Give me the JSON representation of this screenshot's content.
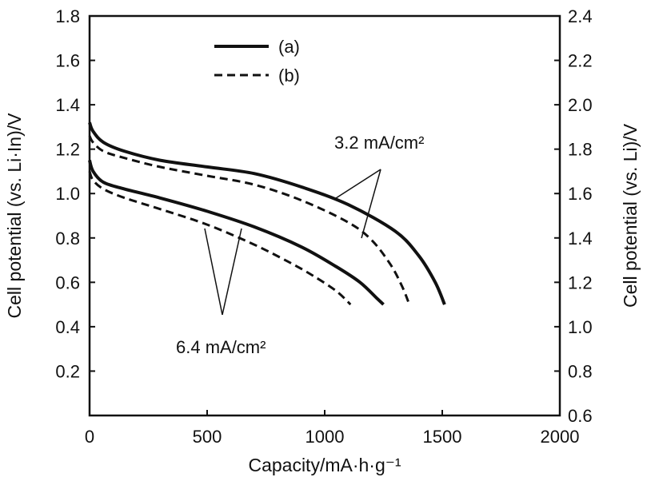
{
  "chart_data": {
    "type": "line",
    "xlabel": "Capacity/mA·h·g⁻¹",
    "ylabel_left": "Cell potential (vs. Li·In)/V",
    "ylabel_right": "Cell potential (vs. Li)/V",
    "xlim": [
      0,
      2000
    ],
    "ylim_left": [
      0.0,
      1.8
    ],
    "ylim_right": [
      0.6,
      2.4
    ],
    "x_ticks": [
      "0",
      "500",
      "1000",
      "1500",
      "2000"
    ],
    "y_ticks_left": [
      "0.2",
      "0.4",
      "0.6",
      "0.8",
      "1.0",
      "1.2",
      "1.4",
      "1.6",
      "1.8"
    ],
    "y_ticks_right": [
      "0.6",
      "0.8",
      "1.0",
      "1.2",
      "1.4",
      "1.6",
      "1.8",
      "2.0",
      "2.2",
      "2.4"
    ],
    "legend": {
      "placement": "top-left",
      "entries": [
        {
          "label": "(a)",
          "style": "solid"
        },
        {
          "label": "(b)",
          "style": "dashed"
        }
      ]
    },
    "annotations": [
      {
        "text": "3.2 mA/cm²"
      },
      {
        "text": "6.4 mA/cm²"
      }
    ],
    "series": [
      {
        "legend": "(a)",
        "current_density": "3.2 mA/cm²",
        "style": "solid",
        "x": [
          0,
          15,
          60,
          150,
          300,
          500,
          700,
          900,
          1100,
          1300,
          1400,
          1470,
          1510
        ],
        "y": [
          1.32,
          1.28,
          1.23,
          1.19,
          1.15,
          1.12,
          1.09,
          1.03,
          0.95,
          0.83,
          0.72,
          0.6,
          0.5
        ]
      },
      {
        "legend": "(b)",
        "current_density": "3.2 mA/cm²",
        "style": "dashed",
        "x": [
          0,
          15,
          60,
          150,
          300,
          500,
          700,
          900,
          1100,
          1200,
          1280,
          1330,
          1360
        ],
        "y": [
          1.26,
          1.23,
          1.19,
          1.16,
          1.12,
          1.08,
          1.04,
          0.97,
          0.87,
          0.79,
          0.68,
          0.58,
          0.5
        ]
      },
      {
        "legend": "(a)",
        "current_density": "6.4 mA/cm²",
        "style": "solid",
        "x": [
          0,
          15,
          60,
          150,
          300,
          500,
          700,
          900,
          1050,
          1150,
          1220,
          1250
        ],
        "y": [
          1.15,
          1.1,
          1.05,
          1.02,
          0.98,
          0.92,
          0.85,
          0.76,
          0.67,
          0.6,
          0.53,
          0.5
        ]
      },
      {
        "legend": "(b)",
        "current_density": "6.4 mA/cm²",
        "style": "dashed",
        "x": [
          0,
          15,
          60,
          150,
          300,
          500,
          700,
          850,
          950,
          1050,
          1110
        ],
        "y": [
          1.1,
          1.06,
          1.02,
          0.98,
          0.93,
          0.86,
          0.77,
          0.69,
          0.63,
          0.56,
          0.5
        ]
      }
    ]
  }
}
